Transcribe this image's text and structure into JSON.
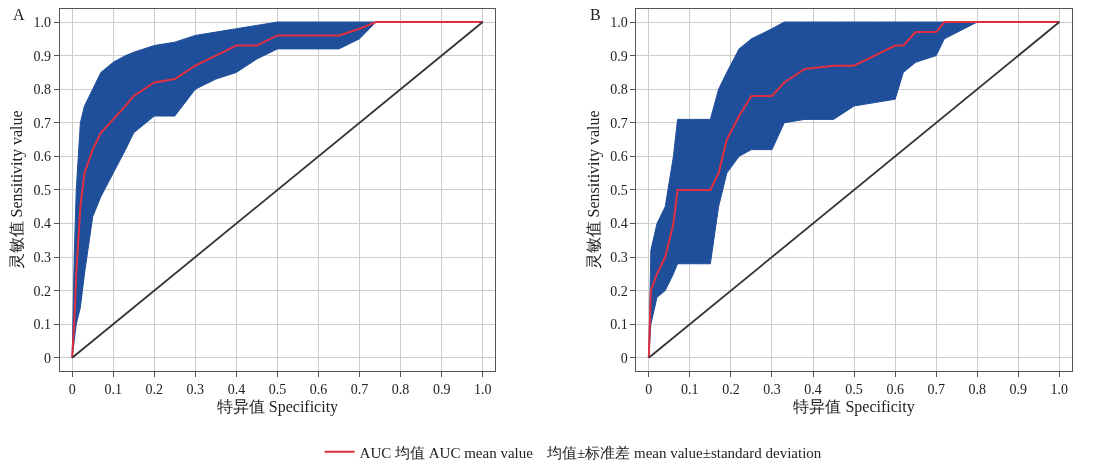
{
  "chart_data": [
    {
      "type": "line",
      "title": "A",
      "xlabel": "特异值 Specificity",
      "ylabel": "灵敏值 Sensitivity value",
      "xlim": [
        -0.03,
        1.03
      ],
      "ylim": [
        -0.04,
        1.04
      ],
      "xticks": [
        0,
        0.1,
        0.2,
        0.3,
        0.4,
        0.5,
        0.6,
        0.7,
        0.8,
        0.9,
        {
          "value": 1,
          "label": "1.0"
        }
      ],
      "yticks": [
        0,
        0.1,
        0.2,
        0.3,
        0.4,
        0.5,
        0.6,
        0.7,
        0.8,
        0.9,
        {
          "value": 1,
          "label": "1.0"
        }
      ],
      "grid": true,
      "legend": "bottom",
      "marker": "none",
      "annotations": [
        "均值±标准差 mean value±standard deviation"
      ],
      "series": [
        {
          "name": "AUC 均值 AUC mean value",
          "type": "line",
          "color": "#e03040",
          "x": [
            0,
            0.005,
            0.01,
            0.02,
            0.03,
            0.05,
            0.07,
            0.1,
            0.13,
            0.15,
            0.2,
            0.25,
            0.3,
            0.35,
            0.4,
            0.45,
            0.5,
            0.6,
            0.65,
            0.7,
            0.74,
            0.8,
            0.9,
            1
          ],
          "values": [
            0,
            0.1,
            0.25,
            0.45,
            0.55,
            0.62,
            0.67,
            0.71,
            0.75,
            0.78,
            0.82,
            0.83,
            0.87,
            0.9,
            0.93,
            0.93,
            0.96,
            0.96,
            0.96,
            0.98,
            1,
            1,
            1,
            1
          ],
          "lower": [
            0,
            0.05,
            0.1,
            0.15,
            0.25,
            0.42,
            0.48,
            0.55,
            0.62,
            0.67,
            0.72,
            0.72,
            0.8,
            0.83,
            0.85,
            0.89,
            0.92,
            0.92,
            0.92,
            0.95,
            1,
            1,
            1,
            1
          ],
          "upper": [
            0,
            0.3,
            0.5,
            0.7,
            0.75,
            0.8,
            0.85,
            0.88,
            0.9,
            0.91,
            0.93,
            0.94,
            0.96,
            0.97,
            0.98,
            0.99,
            1,
            1,
            1,
            1,
            1,
            1,
            1,
            1
          ]
        },
        {
          "color": "#333333",
          "x": [
            0,
            1
          ],
          "values": [
            0,
            1
          ]
        }
      ]
    },
    {
      "type": "line",
      "title": "B",
      "xlabel": "特异值 Specificity",
      "ylabel": "灵敏值 Sensitivity value",
      "xlim": [
        -0.03,
        1.03
      ],
      "ylim": [
        -0.04,
        1.04
      ],
      "xticks": [
        0,
        0.1,
        0.2,
        0.3,
        0.4,
        0.5,
        0.6,
        0.7,
        0.8,
        0.9,
        {
          "value": 1,
          "label": "1.0"
        }
      ],
      "yticks": [
        0,
        0.1,
        0.2,
        0.3,
        0.4,
        0.5,
        0.6,
        0.7,
        0.8,
        0.9,
        {
          "value": 1,
          "label": "1.0"
        }
      ],
      "grid": true,
      "marker": "none",
      "series": [
        {
          "color": "#e03040",
          "x": [
            0,
            0.005,
            0.02,
            0.04,
            0.06,
            0.07,
            0.1,
            0.15,
            0.17,
            0.19,
            0.22,
            0.25,
            0.3,
            0.33,
            0.38,
            0.45,
            0.5,
            0.55,
            0.6,
            0.62,
            0.65,
            0.7,
            0.72,
            0.8,
            0.9,
            1
          ],
          "values": [
            0,
            0.2,
            0.25,
            0.3,
            0.4,
            0.5,
            0.5,
            0.5,
            0.55,
            0.65,
            0.72,
            0.78,
            0.78,
            0.82,
            0.86,
            0.87,
            0.87,
            0.9,
            0.93,
            0.93,
            0.97,
            0.97,
            1,
            1,
            1,
            1
          ],
          "lower": [
            0,
            0.1,
            0.18,
            0.2,
            0.25,
            0.28,
            0.28,
            0.28,
            0.45,
            0.55,
            0.6,
            0.62,
            0.62,
            0.7,
            0.71,
            0.71,
            0.75,
            0.76,
            0.77,
            0.85,
            0.88,
            0.9,
            0.95,
            1,
            1,
            1
          ],
          "upper": [
            0,
            0.32,
            0.4,
            0.45,
            0.6,
            0.71,
            0.71,
            0.71,
            0.8,
            0.85,
            0.92,
            0.95,
            0.98,
            1,
            1,
            1,
            1,
            1,
            1,
            1,
            1,
            1,
            1,
            1,
            1,
            1
          ]
        },
        {
          "color": "#333333",
          "x": [
            0,
            1
          ],
          "values": [
            0,
            1
          ]
        }
      ]
    }
  ]
}
